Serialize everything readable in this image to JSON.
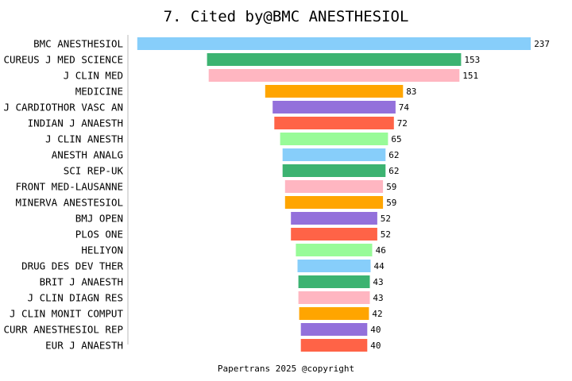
{
  "chart_data": {
    "type": "bar",
    "orientation": "horizontal",
    "layout": "centered funnel",
    "title": "7. Cited by@BMC ANESTHESIOL",
    "footer": "Papertrans 2025 @copyright",
    "grid": false,
    "categories": [
      "BMC ANESTHESIOL",
      "CUREUS J MED SCIENCE",
      "J CLIN MED",
      "MEDICINE",
      "J CARDIOTHOR VASC AN",
      "INDIAN J ANAESTH",
      "J CLIN ANESTH",
      "ANESTH ANALG",
      "SCI REP-UK",
      "FRONT MED-LAUSANNE",
      "MINERVA ANESTESIOL",
      "BMJ OPEN",
      "PLOS ONE",
      "HELIYON",
      "DRUG DES DEV THER",
      "BRIT J ANAESTH",
      "J CLIN DIAGN RES",
      "J CLIN MONIT COMPUT",
      "CURR ANESTHESIOL REP",
      "EUR J ANAESTH"
    ],
    "values": [
      237,
      153,
      151,
      83,
      74,
      72,
      65,
      62,
      62,
      59,
      59,
      52,
      52,
      46,
      44,
      43,
      43,
      42,
      40,
      40
    ],
    "colors": [
      "#87CEFA",
      "#3CB371",
      "#FFB6C1",
      "#FFA500",
      "#9370DB",
      "#FF6347",
      "#98FB98"
    ]
  }
}
